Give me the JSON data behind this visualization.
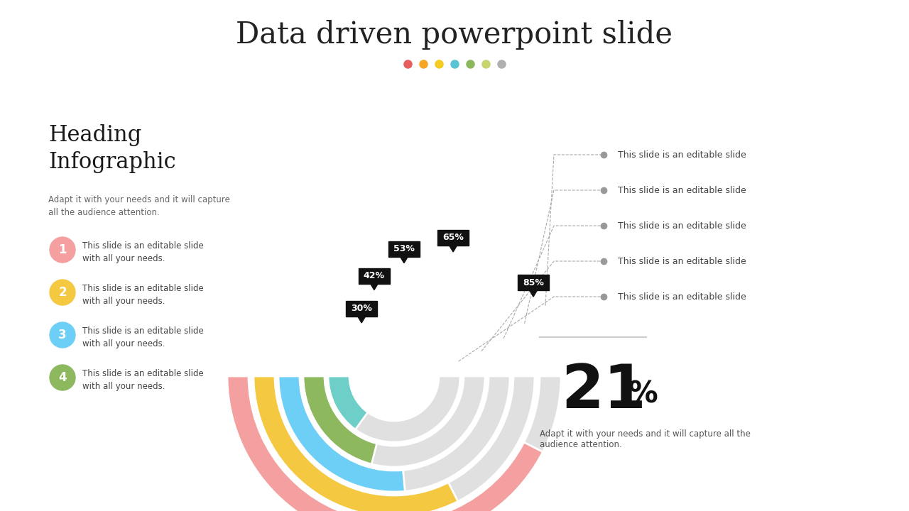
{
  "title": "Data driven powerpoint slide",
  "bg_color": "#ffffff",
  "dot_colors": [
    "#e85d5d",
    "#f5a623",
    "#f5cc23",
    "#5bc4d4",
    "#8db85e",
    "#c8d46e",
    "#b0b0b0"
  ],
  "heading": "Heading\nInfographic",
  "heading_sub": "Adapt it with your needs and it will capture\nall the audience attention.",
  "left_items": [
    {
      "num": "1",
      "color": "#f4a0a0",
      "text": "This slide is an editable slide\nwith all your needs."
    },
    {
      "num": "2",
      "color": "#f5c842",
      "text": "This slide is an editable slide\nwith all your needs."
    },
    {
      "num": "3",
      "color": "#6ecff6",
      "text": "This slide is an editable slide\nwith all your needs."
    },
    {
      "num": "4",
      "color": "#8db85e",
      "text": "This slide is an editable slide\nwith all your needs."
    }
  ],
  "right_items": [
    "This slide is an editable slide",
    "This slide is an editable slide",
    "This slide is an editable slide",
    "This slide is an editable slide",
    "This slide is an editable slide"
  ],
  "big_percent_sub": "Adapt it with your needs and it will capture all the\naudience attention.",
  "arc_colors": [
    "#f4a0a0",
    "#f5c842",
    "#6ecff6",
    "#8db85e",
    "#6ecfc9"
  ],
  "arc_gray": "#e0e0e0",
  "arc_percents": [
    85,
    65,
    53,
    42,
    30
  ],
  "arc_labels": [
    "85%",
    "65%",
    "53%",
    "42%",
    "30%"
  ]
}
